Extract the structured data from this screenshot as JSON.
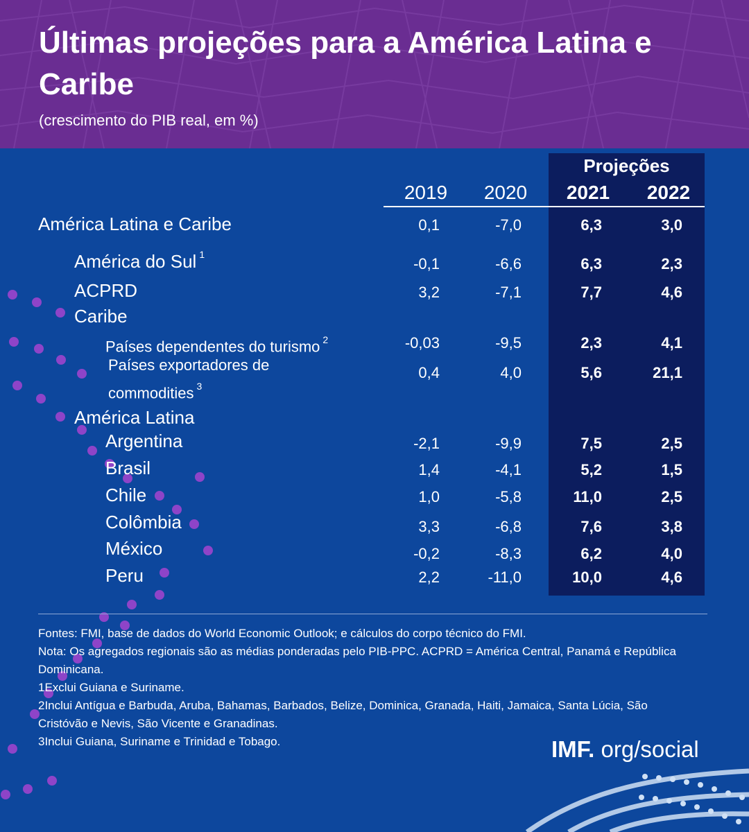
{
  "header": {
    "title": "Últimas projeções para a América Latina e Caribe",
    "subtitle": "(crescimento do PIB real, em %)"
  },
  "chart_data": {
    "type": "table",
    "title": "Últimas projeções para a América Latina e Caribe",
    "subtitle": "(crescimento do PIB real, em %)",
    "column_group": "Projeções",
    "columns": [
      "2019",
      "2020",
      "2021",
      "2022"
    ],
    "rows": [
      {
        "label": "América Latina e Caribe",
        "sup": "",
        "values": [
          "0,1",
          "-7,0",
          "6,3",
          "3,0"
        ]
      },
      {
        "label": "América do Sul",
        "sup": "1",
        "values": [
          "-0,1",
          "-6,6",
          "6,3",
          "2,3"
        ]
      },
      {
        "label": "ACPRD",
        "sup": "",
        "values": [
          "3,2",
          "-7,1",
          "7,7",
          "4,6"
        ]
      },
      {
        "label": "Caribe",
        "sup": "",
        "values": []
      },
      {
        "label": "Países dependentes do turismo",
        "sup": "2",
        "values": [
          "-0,03",
          "-9,5",
          "2,3",
          "4,1"
        ]
      },
      {
        "label": "Países exportadores de commodities",
        "sup": "3",
        "values": [
          "0,4",
          "4,0",
          "5,6",
          "21,1"
        ]
      },
      {
        "label": "América Latina",
        "sup": "",
        "values": []
      },
      {
        "label": "Argentina",
        "sup": "",
        "values": [
          "-2,1",
          "-9,9",
          "7,5",
          "2,5"
        ]
      },
      {
        "label": "Brasil",
        "sup": "",
        "values": [
          "1,4",
          "-4,1",
          "5,2",
          "1,5"
        ]
      },
      {
        "label": "Chile",
        "sup": "",
        "values": [
          "1,0",
          "-5,8",
          "11,0",
          "2,5"
        ]
      },
      {
        "label": "Colômbia",
        "sup": "",
        "values": [
          "3,3",
          "-6,8",
          "7,6",
          "3,8"
        ]
      },
      {
        "label": "México",
        "sup": "",
        "values": [
          "-0,2",
          "-8,3",
          "6,2",
          "4,0"
        ]
      },
      {
        "label": "Peru",
        "sup": "",
        "values": [
          "2,2",
          "-11,0",
          "10,0",
          "4,6"
        ]
      }
    ]
  },
  "notes": {
    "sources": "Fontes: FMI, base de dados do World Economic Outlook; e cálculos do corpo técnico do FMI.",
    "note": "Nota: Os agregados regionais são as médias ponderadas pelo PIB-PPC. ACPRD = América Central, Panamá e República Dominicana.",
    "n1": "1Exclui Guiana e Suriname.",
    "n2": "2Inclui Antígua e Barbuda, Aruba, Bahamas, Barbados, Belize, Dominica, Granada, Haiti, Jamaica, Santa Lúcia, São Cristóvão e Nevis, São Vicente e Granadinas.",
    "n3": "3Inclui Guiana, Suriname e Trinidad e Tobago."
  },
  "brand": {
    "imf": "IMF.",
    "suffix": " org/social"
  },
  "colors": {
    "background": "#0d479d",
    "header": "#6a2d92",
    "projection_box": "#0c1d5e",
    "dots": "#8e44c8"
  }
}
